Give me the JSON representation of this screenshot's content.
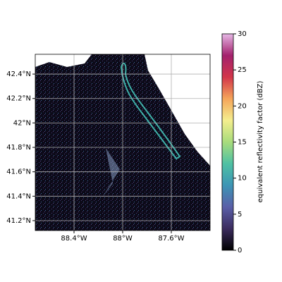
{
  "chart_data": {
    "type": "map",
    "xlim": [
      -88.719,
      -87.281
    ],
    "ylim": [
      41.119,
      42.562
    ],
    "xticks": [
      {
        "value": -88.4,
        "label": "88.4°W"
      },
      {
        "value": -88.0,
        "label": "88°W"
      },
      {
        "value": -87.6,
        "label": "87.6°W"
      }
    ],
    "yticks": [
      {
        "value": 41.2,
        "label": "41.2°N"
      },
      {
        "value": 41.4,
        "label": "41.4°N"
      },
      {
        "value": 41.6,
        "label": "41.6°N"
      },
      {
        "value": 41.8,
        "label": "41.8°N"
      },
      {
        "value": 42.0,
        "label": "42°N"
      },
      {
        "value": 42.2,
        "label": "42.2°N"
      },
      {
        "value": 42.4,
        "label": "42.4°N"
      }
    ],
    "grid": true,
    "colorbar": {
      "label": "equivalent reflectivity factor (dBZ)",
      "clim": [
        0,
        30
      ],
      "ticks": [
        0,
        5,
        10,
        15,
        20,
        25,
        30
      ],
      "colormap": [
        "#000000",
        "#3b2c5e",
        "#5a5fa8",
        "#3d95b5",
        "#4fc1a3",
        "#a8dc7c",
        "#f4ee8e",
        "#f5a55a",
        "#d2354a",
        "#a3216d",
        "#e6b8e6"
      ]
    }
  }
}
